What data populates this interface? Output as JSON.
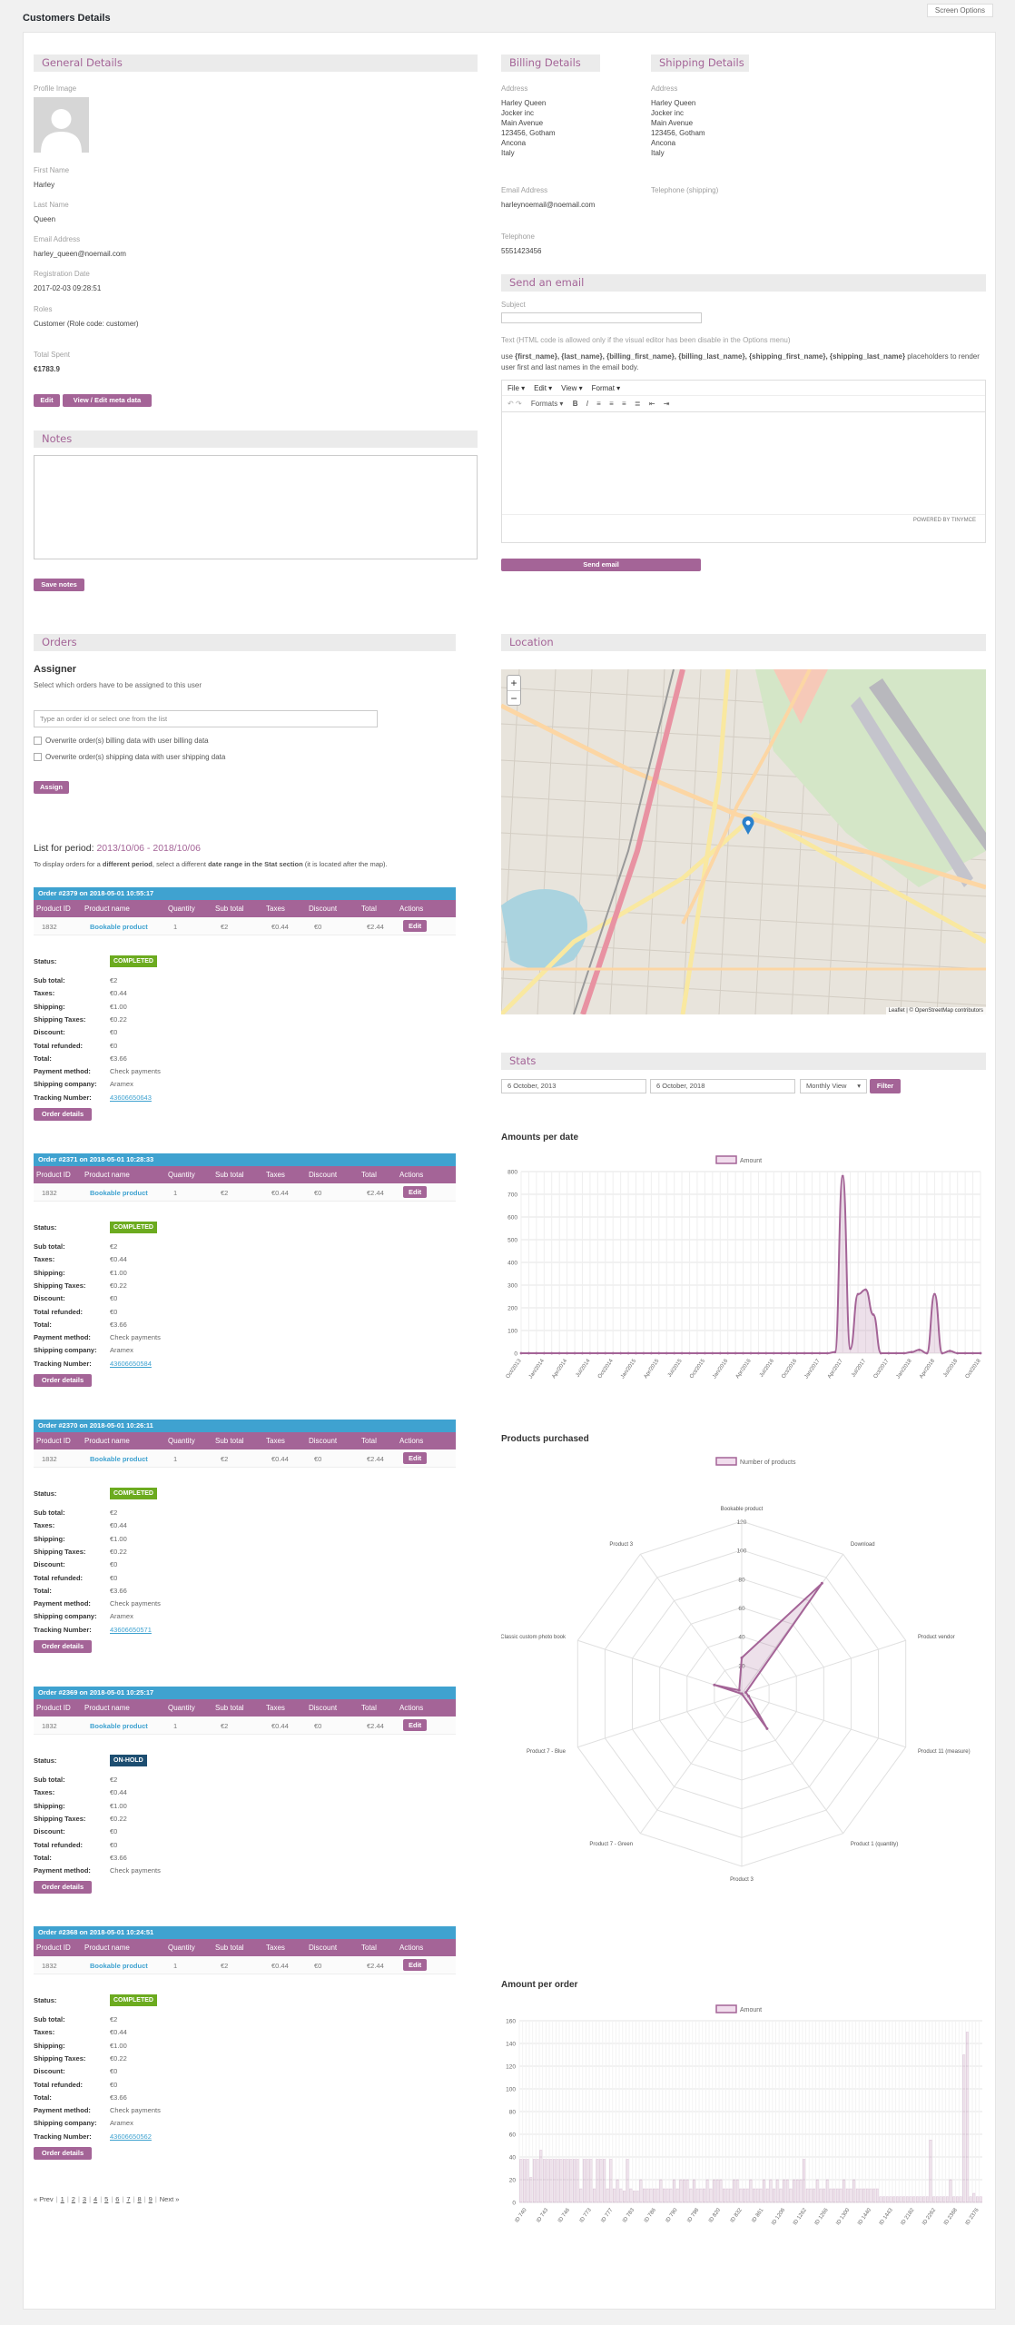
{
  "page": {
    "title": "Customers Details",
    "screen_options": "Screen Options"
  },
  "general": {
    "title": "General Details",
    "profile_image_label": "Profile Image",
    "first_name_label": "First Name",
    "first_name": "Harley",
    "last_name_label": "Last Name",
    "last_name": "Queen",
    "email_label": "Email Address",
    "email": "harley_queen@noemail.com",
    "registration_label": "Registration Date",
    "registration": "2017-02-03 09:28:51",
    "roles_label": "Roles",
    "roles": "Customer (Role code: customer)",
    "total_spent_label": "Total Spent",
    "total_spent": "€1783.9",
    "edit_button": "Edit",
    "meta_button": "View / Edit meta data"
  },
  "billing": {
    "title": "Billing Details",
    "address_label": "Address",
    "address_lines": [
      "Harley Queen",
      "Jocker inc",
      "Main Avenue",
      "123456, Gotham",
      "Ancona",
      "Italy"
    ],
    "email_label": "Email Address",
    "email": "harleynoemail@noemail.com",
    "phone_label": "Telephone",
    "phone": "5551423456"
  },
  "shipping": {
    "title": "Shipping Details",
    "address_label": "Address",
    "address_lines": [
      "Harley Queen",
      "Jocker inc",
      "Main Avenue",
      "123456, Gotham",
      "Ancona",
      "Italy"
    ],
    "phone_label": "Telephone (shipping)"
  },
  "email": {
    "title": "Send an email",
    "subject_label": "Subject",
    "note": "Text (HTML code is allowed only if the visual editor has been disable in the Options menu)",
    "placeholders_prefix": "use",
    "placeholders": "{first_name}, {last_name}, {billing_first_name}, {billing_last_name}, {shipping_first_name}, {shipping_last_name}",
    "placeholders_suffix": "placeholders to render user first and last names in the email body.",
    "menu": [
      "File ▾",
      "Edit ▾",
      "View ▾",
      "Format ▾"
    ],
    "formats": "Formats ▾",
    "powered": "POWERED BY TINYMCE",
    "send_button": "Send email"
  },
  "notes": {
    "title": "Notes",
    "save_button": "Save notes"
  },
  "orders": {
    "title": "Orders",
    "assigner_title": "Assigner",
    "assigner_desc": "Select which orders have to be assigned to this user",
    "assigner_placeholder": "Type an order id or select one from the list",
    "overwrite_billing": "Overwrite order(s) billing data with user billing data",
    "overwrite_shipping": "Overwrite order(s) shipping data with user shipping data",
    "assign_button": "Assign",
    "period_prefix": "List for period:",
    "period": "2013/10/06 - 2018/10/06",
    "period_note_1": "To display orders for a",
    "period_note_b1": "different period",
    "period_note_2": ", select a different",
    "period_note_b2": "date range in the Stat section",
    "period_note_3": "(it is located after the map).",
    "columns": [
      "Product ID",
      "Product name",
      "Quantity",
      "Sub total",
      "Taxes",
      "Discount",
      "Total",
      "Actions"
    ],
    "row_edit": "Edit",
    "labels": {
      "status": "Status:",
      "sub_total": "Sub total:",
      "taxes": "Taxes:",
      "shipping": "Shipping:",
      "shipping_taxes": "Shipping Taxes:",
      "discount": "Discount:",
      "refunded": "Total refunded:",
      "total": "Total:",
      "payment": "Payment method:",
      "company": "Shipping company:",
      "tracking": "Tracking Number:"
    },
    "details_button": "Order details",
    "list": [
      {
        "header": "Order #2379 on 2018-05-01 10:55:17",
        "pid": "1832",
        "pname": "Bookable product",
        "qty": "1",
        "sub": "€2",
        "tax": "€0.44",
        "disc": "€0",
        "total": "€2.44",
        "status": "COMPLETED",
        "s_sub": "€2",
        "s_tax": "€0.44",
        "s_ship": "€1.00",
        "s_shiptax": "€0.22",
        "s_disc": "€0",
        "s_ref": "€0",
        "s_total": "€3.66",
        "s_pay": "Check payments",
        "s_comp": "Aramex",
        "s_track": "43606650643"
      },
      {
        "header": "Order #2371 on 2018-05-01 10:28:33",
        "pid": "1832",
        "pname": "Bookable product",
        "qty": "1",
        "sub": "€2",
        "tax": "€0.44",
        "disc": "€0",
        "total": "€2.44",
        "status": "COMPLETED",
        "s_sub": "€2",
        "s_tax": "€0.44",
        "s_ship": "€1.00",
        "s_shiptax": "€0.22",
        "s_disc": "€0",
        "s_ref": "€0",
        "s_total": "€3.66",
        "s_pay": "Check payments",
        "s_comp": "Aramex",
        "s_track": "43606650584"
      },
      {
        "header": "Order #2370 on 2018-05-01 10:26:11",
        "pid": "1832",
        "pname": "Bookable product",
        "qty": "1",
        "sub": "€2",
        "tax": "€0.44",
        "disc": "€0",
        "total": "€2.44",
        "status": "COMPLETED",
        "s_sub": "€2",
        "s_tax": "€0.44",
        "s_ship": "€1.00",
        "s_shiptax": "€0.22",
        "s_disc": "€0",
        "s_ref": "€0",
        "s_total": "€3.66",
        "s_pay": "Check payments",
        "s_comp": "Aramex",
        "s_track": "43606650571"
      },
      {
        "header": "Order #2369 on 2018-05-01 10:25:17",
        "pid": "1832",
        "pname": "Bookable product",
        "qty": "1",
        "sub": "€2",
        "tax": "€0.44",
        "disc": "€0",
        "total": "€2.44",
        "status": "ON-HOLD",
        "s_sub": "€2",
        "s_tax": "€0.44",
        "s_ship": "€1.00",
        "s_shiptax": "€0.22",
        "s_disc": "€0",
        "s_ref": "€0",
        "s_total": "€3.66",
        "s_pay": "Check payments"
      },
      {
        "header": "Order #2368 on 2018-05-01 10:24:51",
        "pid": "1832",
        "pname": "Bookable product",
        "qty": "1",
        "sub": "€2",
        "tax": "€0.44",
        "disc": "€0",
        "total": "€2.44",
        "status": "COMPLETED",
        "s_sub": "€2",
        "s_tax": "€0.44",
        "s_ship": "€1.00",
        "s_shiptax": "€0.22",
        "s_disc": "€0",
        "s_ref": "€0",
        "s_total": "€3.66",
        "s_pay": "Check payments",
        "s_comp": "Aramex",
        "s_track": "43606650562"
      }
    ],
    "pagination": [
      "« Prev",
      "1",
      "2",
      "3",
      "4",
      "5",
      "6",
      "7",
      "8",
      "9",
      "Next »"
    ]
  },
  "location": {
    "title": "Location",
    "zoom_in": "+",
    "zoom_out": "−",
    "attribution": "Leaflet | © OpenStreetMap contributors"
  },
  "stats": {
    "title": "Stats",
    "start_date": "6 October, 2013",
    "end_date": "6 October, 2018",
    "view": "Monthly View",
    "filter_button": "Filter"
  },
  "chart_data": [
    {
      "type": "line",
      "title": "Amounts per date",
      "legend": "Amount",
      "ylim": [
        0,
        800
      ],
      "yticks": [
        0,
        100,
        200,
        300,
        400,
        500,
        600,
        700,
        800
      ],
      "xticks": [
        "Oct/2013",
        "Jan/2014",
        "Apr/2014",
        "Jul/2014",
        "Oct/2014",
        "Jan/2015",
        "Apr/2015",
        "Jul/2015",
        "Oct/2015",
        "Jan/2016",
        "Apr/2016",
        "Jul/2016",
        "Oct/2016",
        "Jan/2017",
        "Apr/2017",
        "Jul/2017",
        "Oct/2017",
        "Jan/2018",
        "Apr/2018",
        "Jul/2018",
        "Oct/2018"
      ],
      "values": [
        0,
        0,
        0,
        0,
        0,
        0,
        0,
        0,
        0,
        0,
        0,
        0,
        0,
        0,
        0,
        0,
        0,
        0,
        0,
        0,
        0,
        0,
        0,
        0,
        0,
        0,
        0,
        0,
        0,
        0,
        0,
        0,
        0,
        0,
        0,
        0,
        0,
        0,
        0,
        0,
        0,
        5,
        780,
        20,
        260,
        280,
        170,
        0,
        0,
        0,
        0,
        5,
        15,
        0,
        260,
        0,
        10,
        0,
        0,
        0,
        0
      ]
    },
    {
      "type": "radar",
      "title": "Products purchased",
      "legend": "Number of products",
      "rlim": [
        0,
        120
      ],
      "rticks": [
        0,
        20,
        40,
        60,
        80,
        100,
        120
      ],
      "categories": [
        "Bookable product",
        "Download",
        "Product vendor",
        "Product 11 (measure)",
        "Product 1 (quantity)",
        "Product 3",
        "Product 7 - Green",
        "Product 7 - Blue",
        "Classic custom photo book",
        "Product 3"
      ],
      "values": [
        25,
        95,
        3,
        5,
        30,
        0,
        0,
        0,
        20,
        3
      ]
    },
    {
      "type": "bar",
      "title": "Amount per order",
      "legend": "Amount",
      "ylim": [
        0,
        160
      ],
      "yticks": [
        0,
        20,
        40,
        60,
        80,
        100,
        120,
        140,
        160
      ],
      "xticks": [
        "ID 740",
        "ID 743",
        "ID 746",
        "ID 773",
        "ID 777",
        "ID 783",
        "ID 786",
        "ID 790",
        "ID 798",
        "ID 820",
        "ID 832",
        "ID 861",
        "ID 1206",
        "ID 1262",
        "ID 1266",
        "ID 1300",
        "ID 1440",
        "ID 1443",
        "ID 2182",
        "ID 2262",
        "ID 2368",
        "ID 2376"
      ],
      "values": [
        38,
        38,
        38,
        22,
        38,
        38,
        46,
        38,
        38,
        38,
        38,
        38,
        38,
        38,
        38,
        38,
        38,
        38,
        12,
        38,
        38,
        38,
        12,
        38,
        38,
        38,
        12,
        38,
        12,
        20,
        12,
        10,
        38,
        12,
        10,
        10,
        20,
        12,
        12,
        12,
        12,
        12,
        20,
        12,
        12,
        12,
        20,
        12,
        20,
        20,
        20,
        12,
        20,
        12,
        12,
        12,
        20,
        12,
        20,
        20,
        20,
        12,
        12,
        12,
        20,
        20,
        12,
        12,
        12,
        20,
        12,
        12,
        12,
        20,
        12,
        20,
        12,
        20,
        12,
        20,
        20,
        12,
        20,
        20,
        20,
        38,
        12,
        12,
        12,
        20,
        12,
        12,
        20,
        12,
        12,
        12,
        12,
        20,
        12,
        12,
        20,
        12,
        12,
        12,
        12,
        12,
        12,
        12,
        5,
        5,
        5,
        5,
        5,
        5,
        5,
        5,
        5,
        5,
        5,
        5,
        5,
        5,
        5,
        55,
        5,
        5,
        5,
        5,
        5,
        20,
        5,
        5,
        5,
        130,
        150,
        5,
        8,
        5,
        5
      ]
    }
  ]
}
